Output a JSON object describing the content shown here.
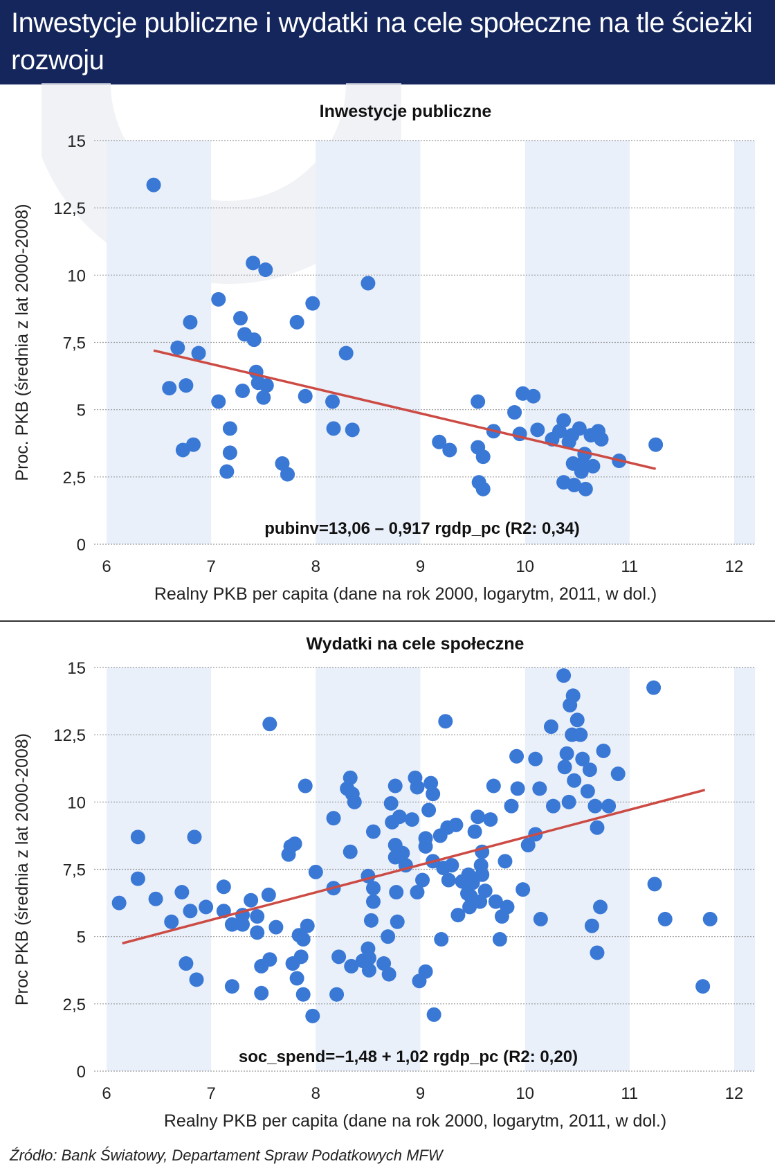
{
  "header": {
    "title": "Inwestycje publiczne i wydatki na cele społeczne na tle ścieżki rozwoju"
  },
  "source": "Źródło:  Bank Światowy, Departament Spraw Podatkowych MFW",
  "colors": {
    "header_bg": "#14265c",
    "band": "#e9f0fa",
    "dot": "#3a78d6",
    "trend": "#cc4b44"
  },
  "chart_data": [
    {
      "type": "scatter",
      "title": "Inwestycje publiczne",
      "xlabel": "Realny PKB per capita (dane na rok 2000, logarytm, 2011, w dol.)",
      "ylabel": "Proc. PKB (średnia z lat 2000-2008)",
      "xlim": [
        6,
        12
      ],
      "ylim": [
        0,
        15
      ],
      "x_ticks": [
        6,
        7,
        8,
        9,
        10,
        11,
        12
      ],
      "x_tick_labels": [
        "6",
        "7",
        "8",
        "9",
        "10",
        "11",
        "12"
      ],
      "y_ticks": [
        0,
        2.5,
        5,
        7.5,
        10,
        12.5,
        15
      ],
      "y_tick_labels": [
        "0",
        "2,5",
        "5",
        "7,5",
        "10",
        "12,5",
        "15"
      ],
      "bands": [
        [
          6,
          7
        ],
        [
          8,
          9
        ],
        [
          10,
          11
        ],
        [
          12,
          12.2
        ]
      ],
      "grid": "horizontal",
      "annotation": "pubinv=13,06 – 0,917 rgdp_pc (R2: 0,34)",
      "trend": {
        "x0": 6.45,
        "y0": 7.2,
        "x1": 11.25,
        "y1": 2.8
      },
      "points": [
        [
          6.45,
          13.35
        ],
        [
          6.6,
          5.8
        ],
        [
          6.68,
          7.3
        ],
        [
          6.73,
          3.5
        ],
        [
          6.76,
          5.9
        ],
        [
          6.8,
          8.25
        ],
        [
          6.83,
          3.7
        ],
        [
          6.88,
          7.1
        ],
        [
          7.07,
          9.1
        ],
        [
          7.07,
          5.3
        ],
        [
          7.15,
          2.7
        ],
        [
          7.18,
          4.3
        ],
        [
          7.18,
          3.4
        ],
        [
          7.28,
          8.4
        ],
        [
          7.3,
          5.7
        ],
        [
          7.32,
          7.8
        ],
        [
          7.4,
          10.45
        ],
        [
          7.41,
          7.6
        ],
        [
          7.43,
          6.4
        ],
        [
          7.45,
          6.0
        ],
        [
          7.5,
          5.45
        ],
        [
          7.52,
          10.2
        ],
        [
          7.53,
          5.9
        ],
        [
          7.68,
          3.0
        ],
        [
          7.73,
          2.6
        ],
        [
          7.82,
          8.25
        ],
        [
          7.9,
          5.5
        ],
        [
          7.97,
          8.95
        ],
        [
          8.16,
          5.3
        ],
        [
          8.17,
          4.3
        ],
        [
          8.29,
          7.1
        ],
        [
          8.35,
          4.25
        ],
        [
          8.5,
          9.7
        ],
        [
          9.18,
          3.8
        ],
        [
          9.28,
          3.5
        ],
        [
          9.55,
          5.3
        ],
        [
          9.55,
          3.6
        ],
        [
          9.56,
          2.3
        ],
        [
          9.6,
          3.25
        ],
        [
          9.6,
          2.05
        ],
        [
          9.7,
          4.2
        ],
        [
          9.9,
          4.9
        ],
        [
          9.95,
          4.1
        ],
        [
          9.98,
          5.6
        ],
        [
          10.08,
          5.5
        ],
        [
          10.12,
          4.25
        ],
        [
          10.26,
          3.9
        ],
        [
          10.33,
          4.2
        ],
        [
          10.37,
          4.6
        ],
        [
          10.37,
          2.3
        ],
        [
          10.42,
          3.8
        ],
        [
          10.45,
          4.05
        ],
        [
          10.46,
          3.0
        ],
        [
          10.47,
          2.2
        ],
        [
          10.52,
          4.3
        ],
        [
          10.54,
          2.7
        ],
        [
          10.55,
          3.0
        ],
        [
          10.57,
          3.35
        ],
        [
          10.58,
          2.05
        ],
        [
          10.63,
          4.05
        ],
        [
          10.65,
          2.9
        ],
        [
          10.7,
          4.2
        ],
        [
          10.73,
          3.9
        ],
        [
          10.9,
          3.1
        ],
        [
          11.25,
          3.7
        ]
      ]
    },
    {
      "type": "scatter",
      "title": "Wydatki na cele społeczne",
      "xlabel": "Realny PKB per capita (dane na rok 2000, logarytm, 2011, w dol.)",
      "ylabel": "Proc PKB (średnia z lat 2000-2008)",
      "xlim": [
        6,
        12
      ],
      "ylim": [
        0,
        15
      ],
      "x_ticks": [
        6,
        7,
        8,
        9,
        10,
        11,
        12
      ],
      "x_tick_labels": [
        "6",
        "7",
        "8",
        "9",
        "10",
        "11",
        "12"
      ],
      "y_ticks": [
        0,
        2.5,
        5,
        7.5,
        10,
        12.5,
        15
      ],
      "y_tick_labels": [
        "0",
        "2,5",
        "5",
        "7,5",
        "10",
        "12,5",
        "15"
      ],
      "bands": [
        [
          6,
          7
        ],
        [
          8,
          9
        ],
        [
          10,
          11
        ],
        [
          12,
          12.2
        ]
      ],
      "grid": "horizontal",
      "annotation": "soc_spend=−1,48 + 1,02 rgdp_pc (R2: 0,20)",
      "trend": {
        "x0": 6.15,
        "y0": 4.75,
        "x1": 11.72,
        "y1": 10.45
      },
      "points": [
        [
          6.12,
          6.25
        ],
        [
          6.3,
          8.7
        ],
        [
          6.3,
          7.15
        ],
        [
          6.47,
          6.4
        ],
        [
          6.62,
          5.55
        ],
        [
          6.72,
          6.65
        ],
        [
          6.76,
          4.0
        ],
        [
          6.8,
          5.95
        ],
        [
          6.84,
          8.7
        ],
        [
          6.86,
          3.4
        ],
        [
          6.95,
          6.1
        ],
        [
          7.12,
          6.85
        ],
        [
          7.12,
          5.95
        ],
        [
          7.2,
          5.45
        ],
        [
          7.2,
          3.15
        ],
        [
          7.3,
          5.8
        ],
        [
          7.3,
          5.45
        ],
        [
          7.38,
          6.35
        ],
        [
          7.44,
          5.75
        ],
        [
          7.44,
          5.15
        ],
        [
          7.48,
          3.9
        ],
        [
          7.48,
          2.9
        ],
        [
          7.55,
          6.55
        ],
        [
          7.56,
          12.9
        ],
        [
          7.56,
          4.15
        ],
        [
          7.62,
          5.35
        ],
        [
          7.74,
          8.05
        ],
        [
          7.76,
          8.35
        ],
        [
          7.78,
          4.0
        ],
        [
          7.8,
          8.45
        ],
        [
          7.82,
          3.45
        ],
        [
          7.84,
          5.05
        ],
        [
          7.86,
          4.25
        ],
        [
          7.88,
          4.9
        ],
        [
          7.88,
          2.85
        ],
        [
          7.9,
          10.6
        ],
        [
          7.92,
          5.4
        ],
        [
          7.97,
          2.05
        ],
        [
          8.0,
          7.4
        ],
        [
          8.17,
          9.4
        ],
        [
          8.17,
          6.8
        ],
        [
          8.2,
          2.85
        ],
        [
          8.22,
          4.25
        ],
        [
          8.3,
          10.5
        ],
        [
          8.33,
          10.9
        ],
        [
          8.33,
          8.15
        ],
        [
          8.34,
          3.9
        ],
        [
          8.35,
          10.3
        ],
        [
          8.37,
          10.0
        ],
        [
          8.45,
          4.1
        ],
        [
          8.5,
          7.25
        ],
        [
          8.5,
          4.55
        ],
        [
          8.51,
          3.75
        ],
        [
          8.51,
          4.2
        ],
        [
          8.53,
          5.6
        ],
        [
          8.55,
          8.9
        ],
        [
          8.55,
          6.8
        ],
        [
          8.55,
          6.3
        ],
        [
          8.65,
          4.0
        ],
        [
          8.69,
          5.0
        ],
        [
          8.7,
          3.6
        ],
        [
          8.72,
          9.95
        ],
        [
          8.73,
          9.25
        ],
        [
          8.76,
          10.6
        ],
        [
          8.76,
          8.4
        ],
        [
          8.76,
          7.95
        ],
        [
          8.77,
          6.65
        ],
        [
          8.78,
          5.55
        ],
        [
          8.8,
          9.45
        ],
        [
          8.83,
          8.1
        ],
        [
          8.86,
          7.65
        ],
        [
          8.92,
          9.35
        ],
        [
          8.95,
          10.9
        ],
        [
          8.97,
          10.55
        ],
        [
          8.97,
          6.65
        ],
        [
          8.99,
          3.35
        ],
        [
          9.02,
          7.1
        ],
        [
          9.05,
          3.7
        ],
        [
          9.05,
          8.65
        ],
        [
          9.05,
          8.35
        ],
        [
          9.08,
          9.7
        ],
        [
          9.1,
          10.7
        ],
        [
          9.12,
          10.3
        ],
        [
          9.12,
          7.8
        ],
        [
          9.13,
          2.1
        ],
        [
          9.19,
          8.75
        ],
        [
          9.2,
          4.9
        ],
        [
          9.22,
          7.55
        ],
        [
          9.24,
          13.0
        ],
        [
          9.26,
          9.05
        ],
        [
          9.27,
          7.1
        ],
        [
          9.3,
          7.65
        ],
        [
          9.34,
          9.15
        ],
        [
          9.36,
          5.8
        ],
        [
          9.4,
          7.05
        ],
        [
          9.45,
          6.6
        ],
        [
          9.46,
          7.3
        ],
        [
          9.47,
          6.1
        ],
        [
          9.48,
          6.5
        ],
        [
          9.5,
          7.0
        ],
        [
          9.52,
          8.9
        ],
        [
          9.55,
          9.45
        ],
        [
          9.57,
          6.3
        ],
        [
          9.58,
          7.65
        ],
        [
          9.59,
          8.15
        ],
        [
          9.59,
          7.3
        ],
        [
          9.62,
          6.7
        ],
        [
          9.67,
          9.35
        ],
        [
          9.7,
          10.6
        ],
        [
          9.72,
          6.3
        ],
        [
          9.76,
          4.9
        ],
        [
          9.78,
          5.75
        ],
        [
          9.81,
          7.8
        ],
        [
          9.83,
          6.1
        ],
        [
          9.87,
          9.85
        ],
        [
          9.92,
          11.7
        ],
        [
          9.93,
          10.5
        ],
        [
          9.98,
          6.75
        ],
        [
          10.03,
          8.4
        ],
        [
          10.1,
          11.6
        ],
        [
          10.1,
          8.8
        ],
        [
          10.14,
          10.5
        ],
        [
          10.15,
          5.65
        ],
        [
          10.25,
          12.8
        ],
        [
          10.27,
          9.85
        ],
        [
          10.37,
          14.7
        ],
        [
          10.38,
          11.3
        ],
        [
          10.4,
          11.8
        ],
        [
          10.42,
          10.0
        ],
        [
          10.43,
          13.6
        ],
        [
          10.45,
          12.5
        ],
        [
          10.46,
          13.95
        ],
        [
          10.47,
          10.8
        ],
        [
          10.5,
          13.05
        ],
        [
          10.53,
          12.5
        ],
        [
          10.55,
          11.6
        ],
        [
          10.6,
          10.4
        ],
        [
          10.62,
          11.2
        ],
        [
          10.64,
          5.4
        ],
        [
          10.67,
          9.85
        ],
        [
          10.69,
          9.05
        ],
        [
          10.69,
          4.4
        ],
        [
          10.72,
          6.1
        ],
        [
          10.75,
          11.9
        ],
        [
          10.8,
          9.85
        ],
        [
          10.89,
          11.05
        ],
        [
          11.23,
          14.25
        ],
        [
          11.24,
          6.95
        ],
        [
          11.34,
          5.65
        ],
        [
          11.7,
          3.15
        ],
        [
          11.77,
          5.65
        ]
      ]
    }
  ]
}
